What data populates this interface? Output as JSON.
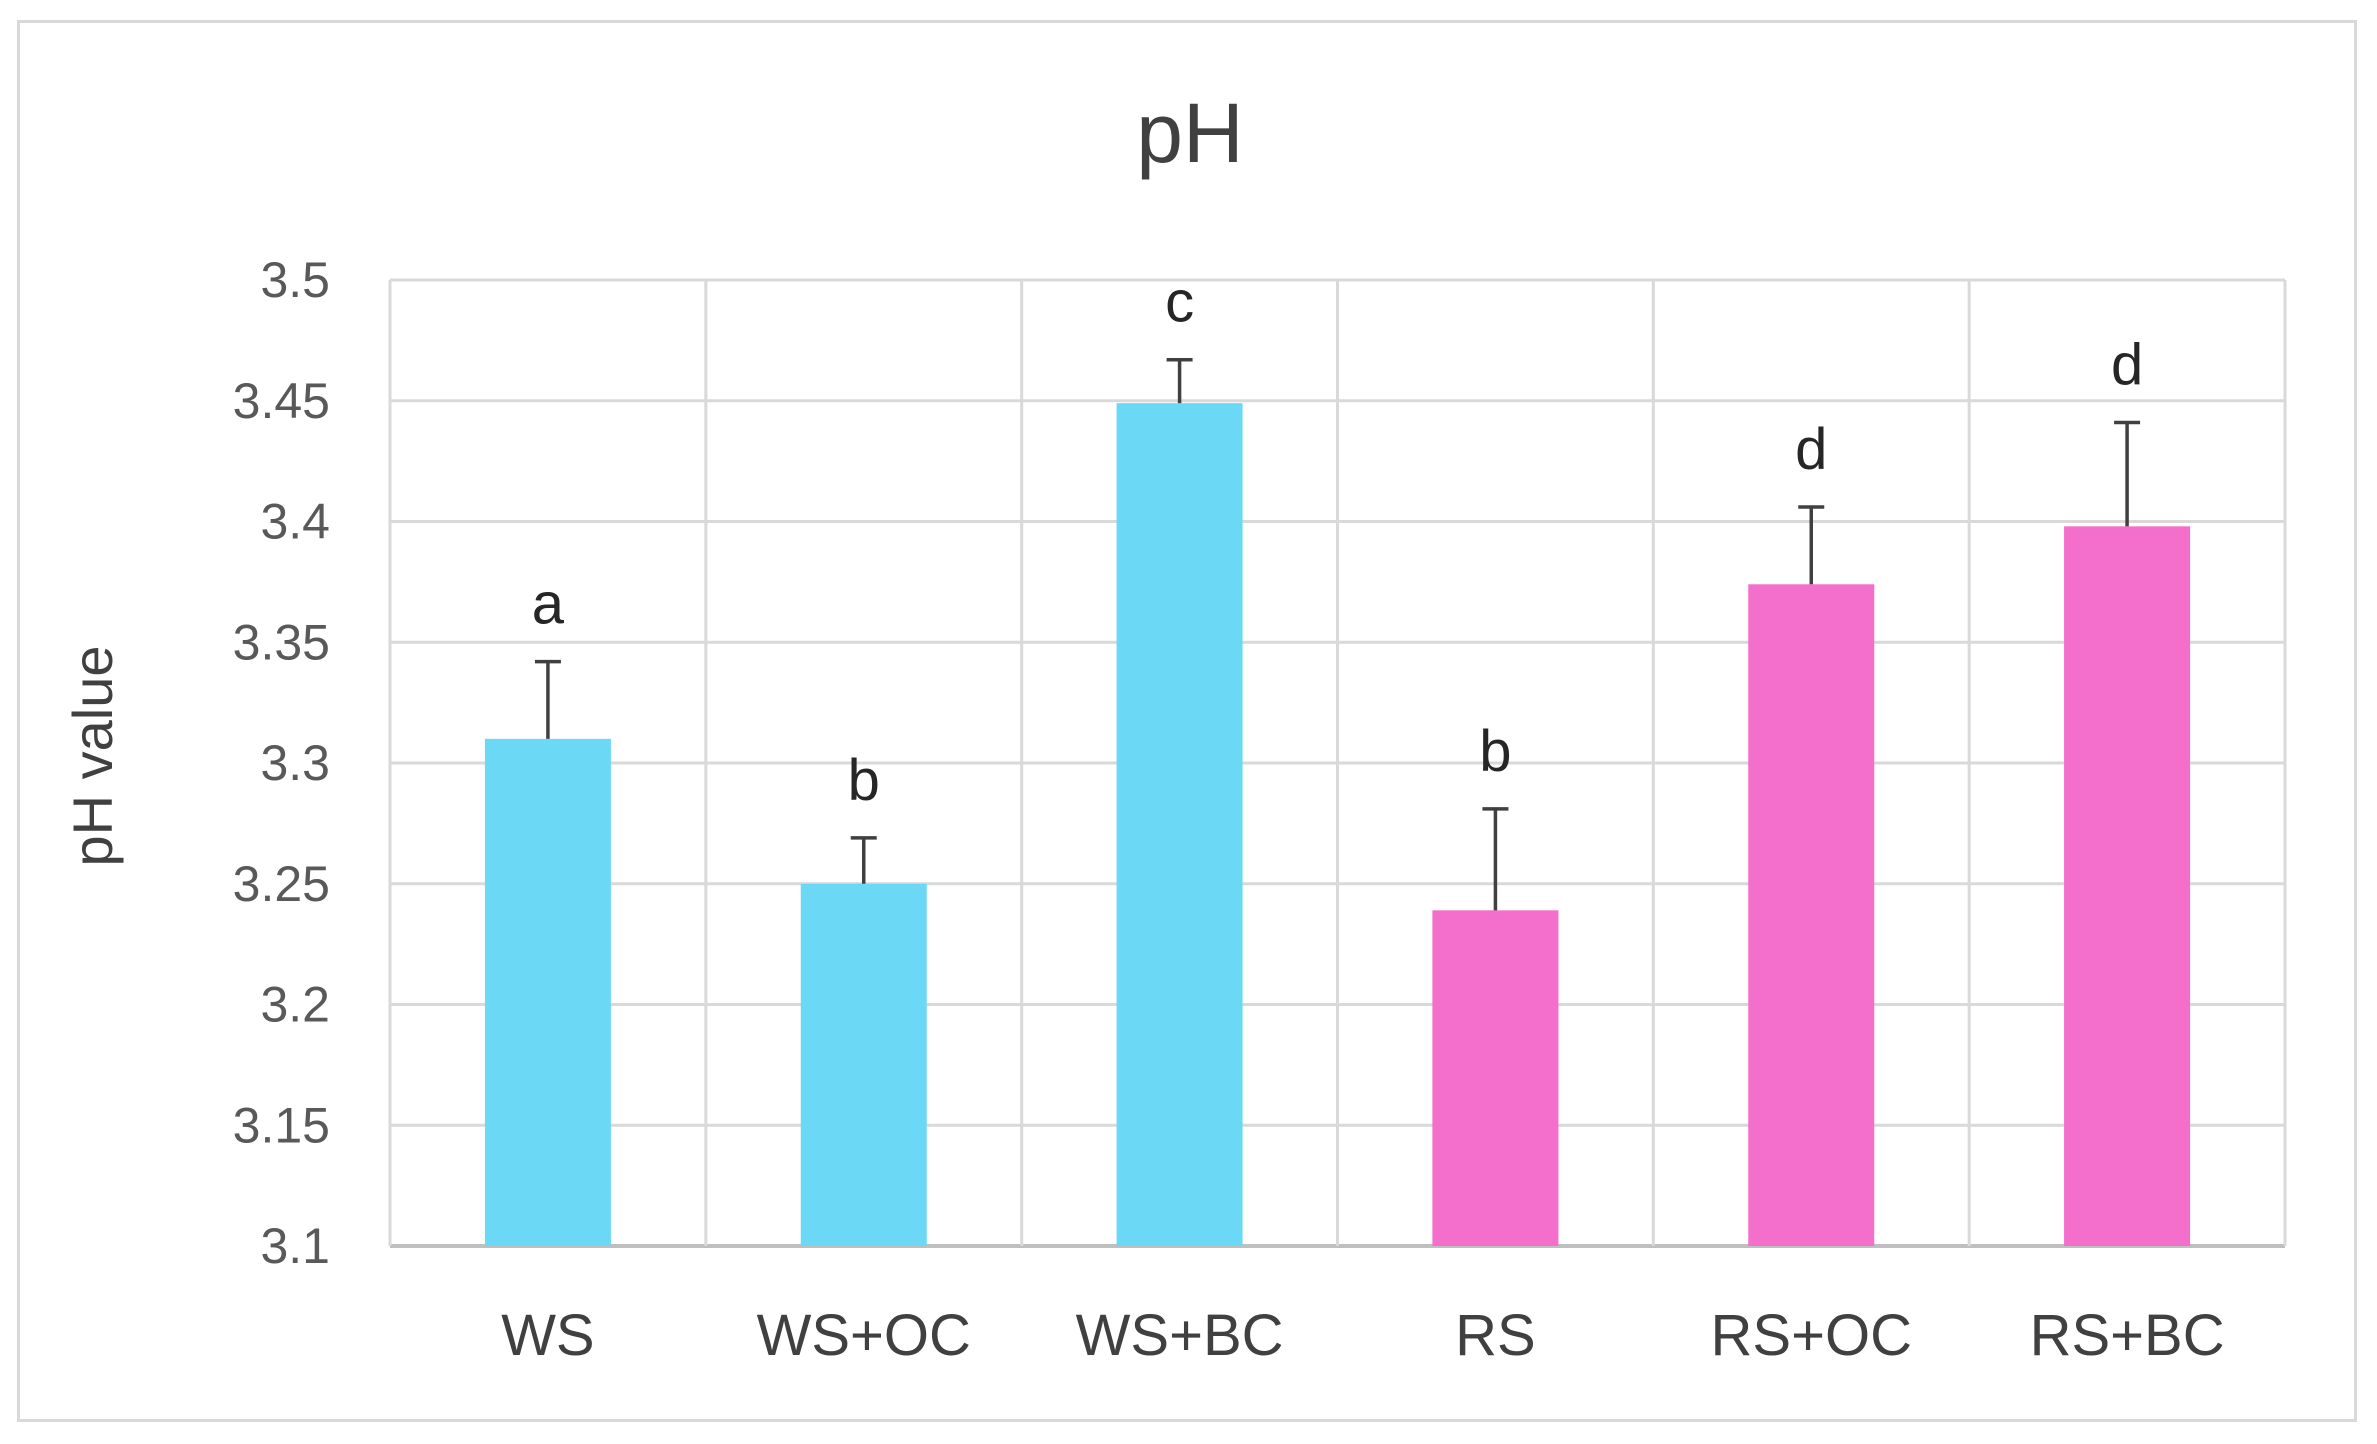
{
  "chart_data": {
    "type": "bar",
    "title": "pH",
    "xlabel": "",
    "ylabel": "pH value",
    "ylim": [
      3.1,
      3.5
    ],
    "yticks": [
      3.1,
      3.15,
      3.2,
      3.25,
      3.3,
      3.35,
      3.4,
      3.45,
      3.5
    ],
    "ytick_labels": [
      "3.1",
      "3.15",
      "3.2",
      "3.25",
      "3.3",
      "3.35",
      "3.4",
      "3.45",
      "3.5"
    ],
    "grid": true,
    "categories": [
      "WS",
      "WS+OC",
      "WS+BC",
      "RS",
      "RS+OC",
      "RS+BC"
    ],
    "values": [
      3.31,
      3.25,
      3.449,
      3.239,
      3.374,
      3.398
    ],
    "errors": [
      0.032,
      0.019,
      0.018,
      0.042,
      0.032,
      0.043
    ],
    "significance_labels": [
      "a",
      "b",
      "c",
      "b",
      "d",
      "d"
    ],
    "colors": [
      "#6bd9f5",
      "#6bd9f5",
      "#6bd9f5",
      "#f46ecb",
      "#f46ecb",
      "#f46ecb"
    ],
    "gridline_color": "#d9d9d9",
    "axis_color": "#bfbfbf",
    "error_bar_color": "#404040"
  }
}
